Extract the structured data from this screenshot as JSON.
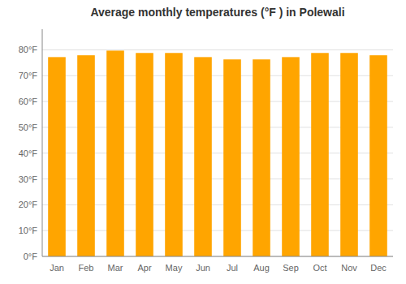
{
  "chart_data": {
    "type": "bar",
    "title": "Average monthly temperatures (°F ) in Polewali",
    "categories": [
      "Jan",
      "Feb",
      "Mar",
      "Apr",
      "May",
      "Jun",
      "Jul",
      "Aug",
      "Sep",
      "Oct",
      "Nov",
      "Dec"
    ],
    "values": [
      77.2,
      77.9,
      79.7,
      78.8,
      78.8,
      77.2,
      76.3,
      76.3,
      77.2,
      78.8,
      78.8,
      77.9
    ],
    "color": "#FFA500",
    "ylim": [
      0,
      88
    ],
    "yticks": [
      {
        "value": 0,
        "label": "0°F"
      },
      {
        "value": 10,
        "label": "10°F"
      },
      {
        "value": 20,
        "label": "20°F"
      },
      {
        "value": 30,
        "label": "30°F"
      },
      {
        "value": 40,
        "label": "40°F"
      },
      {
        "value": 50,
        "label": "50°F"
      },
      {
        "value": 60,
        "label": "60°F"
      },
      {
        "value": 70,
        "label": "70°F"
      },
      {
        "value": 80,
        "label": "80°F"
      }
    ],
    "grid": true
  }
}
